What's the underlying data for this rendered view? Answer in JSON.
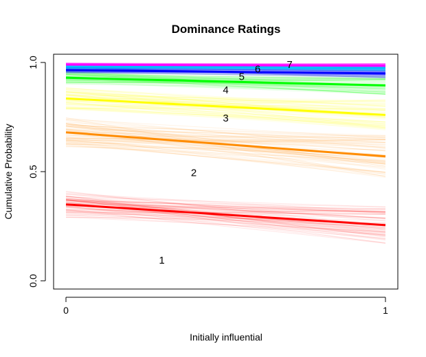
{
  "chart_data": {
    "type": "line",
    "title": "Dominance Ratings",
    "xlabel": "Initially influential",
    "ylabel": "Cumulative Probability",
    "xlim": [
      0,
      1
    ],
    "ylim": [
      0,
      1
    ],
    "x": [
      0,
      1
    ],
    "x_ticks": [
      "0",
      "1"
    ],
    "y_ticks": [
      "0.0",
      "0.5",
      "1.0"
    ],
    "series": [
      {
        "label": "1",
        "color": "#ff0000",
        "values": [
          0.35,
          0.255
        ],
        "label_at": [
          0.3,
          0.095
        ]
      },
      {
        "label": "2",
        "color": "#ff8c00",
        "values": [
          0.68,
          0.57
        ],
        "label_at": [
          0.4,
          0.495
        ]
      },
      {
        "label": "3",
        "color": "#ffff00",
        "values": [
          0.835,
          0.76
        ],
        "label_at": [
          0.5,
          0.745
        ]
      },
      {
        "label": "4",
        "color": "#00ff00",
        "values": [
          0.93,
          0.895
        ],
        "label_at": [
          0.5,
          0.875
        ]
      },
      {
        "label": "5",
        "color": "#0000ff",
        "values": [
          0.965,
          0.95
        ],
        "label_at": [
          0.55,
          0.935
        ]
      },
      {
        "label": "6",
        "color": "#00bfff",
        "values": [
          0.982,
          0.975
        ],
        "label_at": [
          0.6,
          0.97
        ]
      },
      {
        "label": "7",
        "color": "#ff00ff",
        "values": [
          0.99,
          0.985
        ],
        "label_at": [
          0.7,
          0.99
        ]
      }
    ],
    "line_order": [
      0,
      1,
      2,
      3,
      5,
      6,
      4
    ],
    "grid": false,
    "legend": "none"
  }
}
